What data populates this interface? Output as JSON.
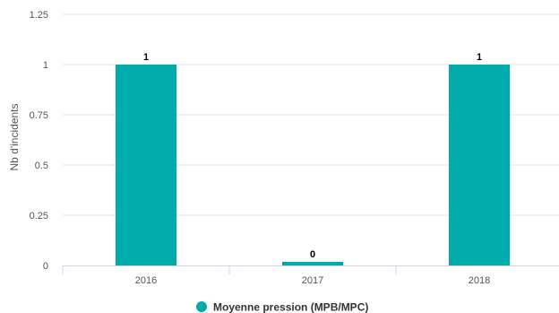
{
  "chart_data": {
    "type": "bar",
    "categories": [
      "2016",
      "2017",
      "2018"
    ],
    "series": [
      {
        "name": "Moyenne pression (MPB/MPC)",
        "values": [
          1,
          0,
          1
        ],
        "color": "#00ABAB"
      }
    ],
    "data_labels": [
      "1",
      "0",
      "1"
    ],
    "ylabel": "Nb d'incidents",
    "xlabel": "",
    "ylim": [
      0,
      1.25
    ],
    "yticks": [
      0,
      0.25,
      0.5,
      0.75,
      1,
      1.25
    ],
    "ytick_labels": [
      "0",
      "0.25",
      "0.5",
      "0.75",
      "1",
      "1.25"
    ],
    "grid": true,
    "legend_position": "bottom"
  }
}
